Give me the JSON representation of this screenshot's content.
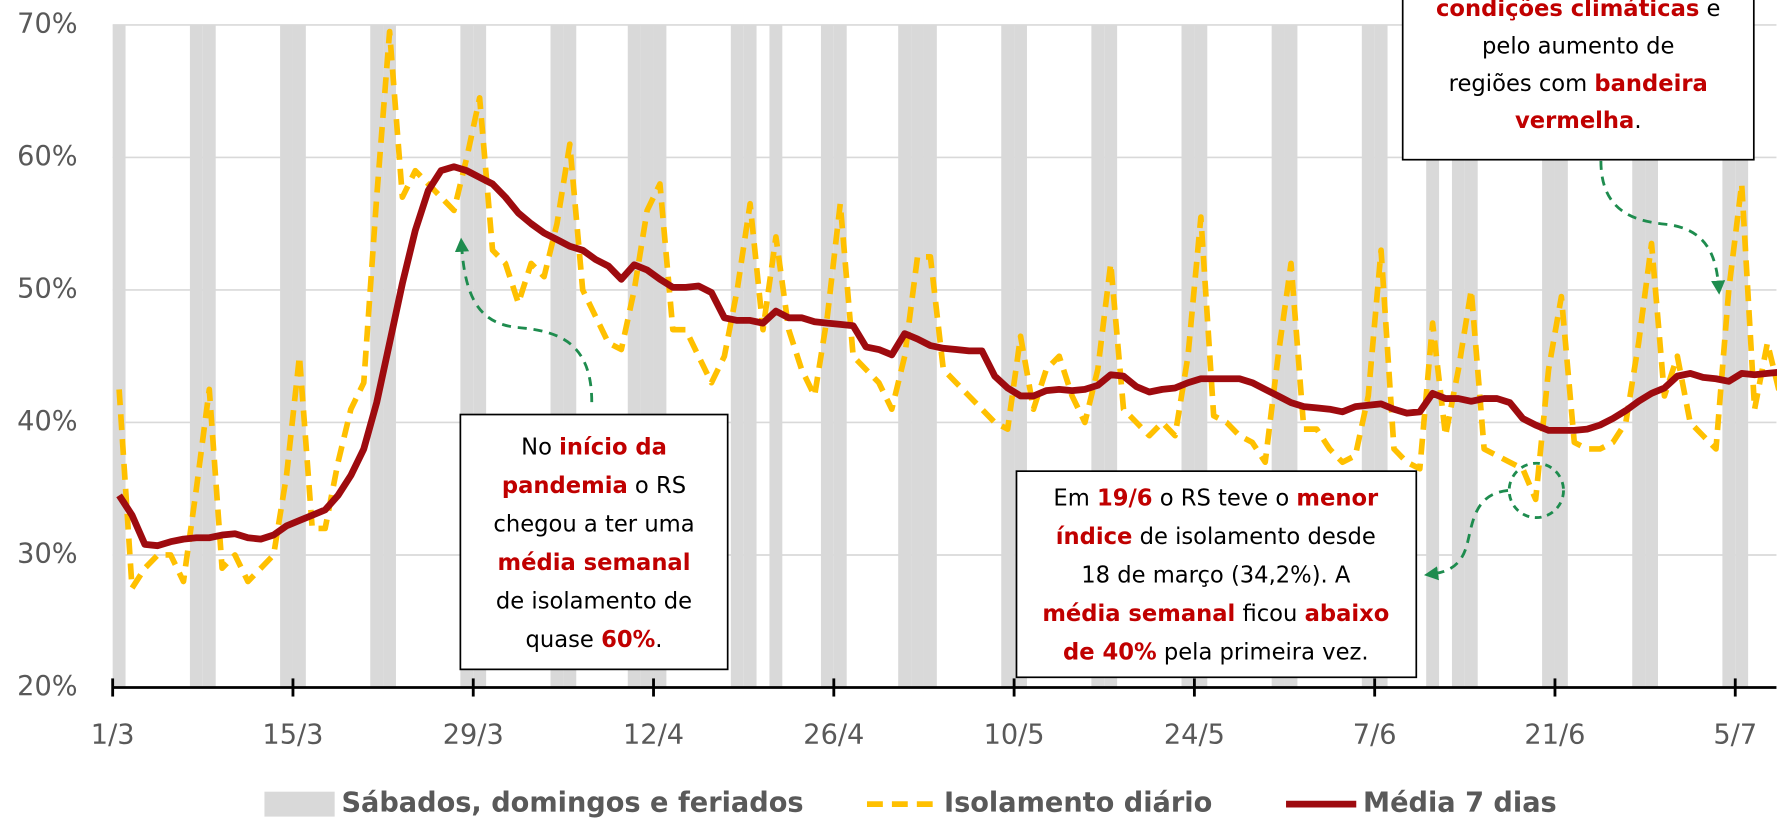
{
  "chart_data": {
    "type": "line",
    "categories": [
      "1/3",
      null,
      null,
      null,
      null,
      null,
      null,
      null,
      null,
      null,
      null,
      null,
      null,
      null,
      "15/3",
      null,
      null,
      null,
      null,
      null,
      null,
      null,
      null,
      null,
      null,
      null,
      null,
      null,
      "29/3",
      null,
      null,
      null,
      null,
      null,
      null,
      null,
      null,
      null,
      null,
      null,
      null,
      null,
      "12/4",
      null,
      null,
      null,
      null,
      null,
      null,
      null,
      null,
      null,
      null,
      null,
      null,
      null,
      "26/4",
      null,
      null,
      null,
      null,
      null,
      null,
      null,
      null,
      null,
      null,
      null,
      null,
      null,
      "10/5",
      null,
      null,
      null,
      null,
      null,
      null,
      null,
      null,
      null,
      null,
      null,
      null,
      null,
      "24/5",
      null,
      null,
      null,
      null,
      null,
      null,
      null,
      null,
      null,
      null,
      null,
      null,
      null,
      "7/6",
      null,
      null,
      null,
      null,
      null,
      null,
      null,
      null,
      null,
      null,
      null,
      null,
      null,
      "21/6",
      null,
      null,
      null,
      null,
      null,
      null,
      null,
      null,
      null,
      null,
      null,
      null,
      null,
      "5/7",
      null,
      null,
      null
    ],
    "series": [
      {
        "name": "Sábados, domingos e feriados",
        "type": "bar",
        "color": "#d9d9d9",
        "values": [
          70,
          null,
          null,
          null,
          null,
          null,
          70,
          70,
          null,
          null,
          null,
          null,
          null,
          70,
          70,
          null,
          null,
          null,
          null,
          null,
          70,
          70,
          null,
          null,
          null,
          null,
          null,
          70,
          70,
          null,
          null,
          null,
          null,
          null,
          70,
          70,
          null,
          null,
          null,
          null,
          70,
          70,
          70,
          null,
          null,
          null,
          null,
          null,
          70,
          70,
          null,
          70,
          null,
          null,
          null,
          70,
          70,
          null,
          null,
          null,
          null,
          70,
          70,
          70,
          null,
          null,
          null,
          null,
          null,
          70,
          70,
          null,
          null,
          null,
          null,
          null,
          70,
          70,
          null,
          null,
          null,
          null,
          null,
          70,
          70,
          null,
          null,
          null,
          null,
          null,
          70,
          70,
          null,
          null,
          null,
          null,
          null,
          70,
          70,
          null,
          null,
          null,
          70,
          null,
          70,
          70,
          null,
          null,
          null,
          null,
          null,
          70,
          70,
          null,
          null,
          null,
          null,
          null,
          70,
          70,
          null,
          null,
          null,
          null,
          null,
          70,
          70,
          null,
          null,
          null
        ]
      },
      {
        "name": "Isolamento diário",
        "type": "line",
        "dashed": true,
        "color": "#ffc000",
        "values": [
          42.5,
          27.5,
          29,
          30,
          30,
          28,
          35,
          42.5,
          29,
          30,
          28,
          29,
          30,
          36,
          45,
          32,
          32,
          37,
          41,
          43,
          57,
          69.5,
          57,
          59,
          58,
          57,
          56,
          60,
          64.5,
          53,
          52,
          49,
          52,
          51,
          55,
          61,
          50,
          48,
          46,
          45.5,
          50,
          56,
          58,
          47,
          47,
          45,
          43,
          45,
          50,
          56.5,
          47,
          54,
          47,
          44,
          42,
          48,
          56.5,
          45,
          44,
          43,
          41,
          45,
          52.5,
          52.5,
          44,
          43,
          42,
          41,
          40,
          39.5,
          46.5,
          41,
          44,
          45,
          42,
          40,
          44,
          52,
          41,
          40,
          39,
          40,
          39,
          45,
          55.5,
          40.5,
          40,
          39,
          38.5,
          37,
          45,
          52,
          39.5,
          39.5,
          38,
          37,
          37.5,
          42,
          53,
          38,
          37,
          36.5,
          47.5,
          39,
          44,
          50,
          38,
          37.5,
          37,
          36.5,
          34.2,
          44,
          49.5,
          38.5,
          38,
          38,
          38.5,
          40,
          46,
          53.5,
          42,
          45,
          40,
          39,
          38,
          50,
          58,
          41,
          46,
          42
        ]
      },
      {
        "name": "Média 7 dias",
        "type": "line",
        "dashed": false,
        "color": "#9e0b0f",
        "values": [
          34.5,
          33,
          30.8,
          30.7,
          31,
          31.2,
          31.3,
          31.3,
          31.5,
          31.6,
          31.3,
          31.2,
          31.5,
          32.2,
          32.6,
          33,
          33.4,
          34.5,
          36,
          38,
          41.5,
          46,
          50.5,
          54.5,
          57.5,
          59,
          59.3,
          59,
          58.5,
          58,
          57,
          55.8,
          55,
          54.3,
          53.8,
          53.3,
          53,
          52.3,
          51.8,
          50.8,
          51.9,
          51.5,
          50.8,
          50.2,
          50.2,
          50.3,
          49.8,
          47.9,
          47.7,
          47.7,
          47.5,
          48.4,
          47.9,
          47.9,
          47.6,
          47.5,
          47.4,
          47.3,
          45.7,
          45.5,
          45.1,
          46.7,
          46.3,
          45.8,
          45.6,
          45.5,
          45.4,
          45.4,
          43.5,
          42.6,
          42,
          42,
          42.4,
          42.5,
          42.4,
          42.5,
          42.8,
          43.6,
          43.5,
          42.7,
          42.3,
          42.5,
          42.6,
          43,
          43.3,
          43.3,
          43.3,
          43.3,
          43,
          42.5,
          42,
          41.5,
          41.2,
          41.1,
          41,
          40.8,
          41.2,
          41.3,
          41.4,
          41,
          40.7,
          40.8,
          42.2,
          41.8,
          41.8,
          41.6,
          41.8,
          41.8,
          41.5,
          40.3,
          39.8,
          39.4,
          39.4,
          39.4,
          39.5,
          39.8,
          40.3,
          40.9,
          41.6,
          42.2,
          42.6,
          43.5,
          43.7,
          43.4,
          43.3,
          43.1,
          43.7,
          43.6,
          43.7,
          43.8
        ]
      }
    ],
    "ylim": [
      20,
      70
    ],
    "yticks": [
      {
        "value": 20,
        "label": "20%"
      },
      {
        "value": 30,
        "label": "30%"
      },
      {
        "value": 40,
        "label": "40%"
      },
      {
        "value": 50,
        "label": "50%"
      },
      {
        "value": 60,
        "label": "60%"
      },
      {
        "value": 70,
        "label": "70%"
      }
    ],
    "grid": true,
    "legend": "bottom",
    "highlight_color": "#c00000",
    "annotations": [
      {
        "lines": [
          [
            {
              "text": "No "
            },
            {
              "text": "início da",
              "highlight": true
            }
          ],
          [
            {
              "text": "pandemia",
              "highlight": true
            },
            {
              "text": " o RS"
            }
          ],
          [
            {
              "text": "chegou a ter uma"
            }
          ],
          [
            {
              "text": "média semanal",
              "highlight": true
            }
          ],
          [
            {
              "text": "de isolamento de"
            }
          ],
          [
            {
              "text": "quase "
            },
            {
              "text": "60%",
              "highlight": true
            },
            {
              "text": "."
            }
          ]
        ]
      },
      {
        "lines": [
          [
            {
              "text": "Em "
            },
            {
              "text": "19/6",
              "highlight": true
            },
            {
              "text": " o RS teve o "
            },
            {
              "text": "menor",
              "highlight": true
            }
          ],
          [
            {
              "text": "índice",
              "highlight": true
            },
            {
              "text": " de isolamento desde"
            }
          ],
          [
            {
              "text": "18 de março (34,2%). A"
            }
          ],
          [
            {
              "text": "média semanal",
              "highlight": true
            },
            {
              "text": " ficou "
            },
            {
              "text": "abaixo",
              "highlight": true
            }
          ],
          [
            {
              "text": "de 40%",
              "highlight": true
            },
            {
              "text": " pela primeira vez."
            }
          ]
        ]
      },
      {
        "lines": [
          [
            {
              "text": "condições climáticas",
              "highlight": true
            },
            {
              "text": " e"
            }
          ],
          [
            {
              "text": "pelo aumento de"
            }
          ],
          [
            {
              "text": "regiões com "
            },
            {
              "text": "bandeira",
              "highlight": true
            }
          ],
          [
            {
              "text": "vermelha",
              "highlight": true
            },
            {
              "text": "."
            }
          ]
        ]
      }
    ]
  }
}
